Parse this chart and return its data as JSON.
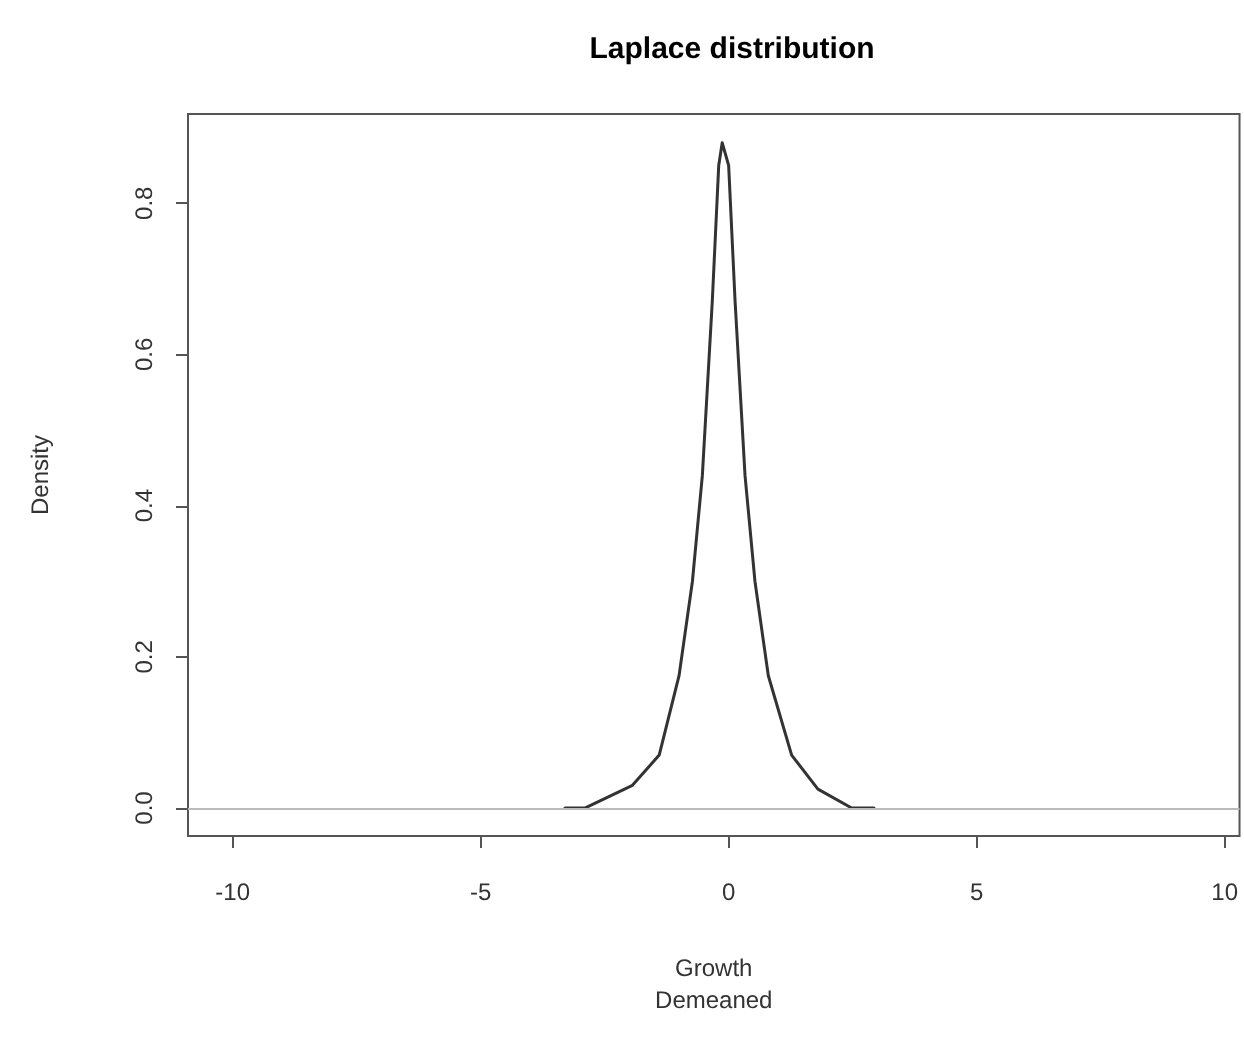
{
  "chart_data": {
    "type": "line",
    "title": "Laplace distribution",
    "xlabel": "Growth\nDemeaned",
    "ylabel": "Density",
    "series": [
      {
        "color": "#333333",
        "x": [
          -3.3,
          -2.9,
          -1.94,
          -1.4,
          -1.0,
          -0.73,
          -0.53,
          -0.33,
          -0.2,
          -0.13,
          0,
          0.13,
          0.33,
          0.53,
          0.8,
          1.27,
          1.8,
          2.48,
          2.93
        ],
        "values": [
          0.0,
          0.0,
          0.03,
          0.07,
          0.175,
          0.3,
          0.44,
          0.67,
          0.85,
          0.88,
          0.85,
          0.67,
          0.44,
          0.3,
          0.175,
          0.07,
          0.025,
          0.0,
          0.0
        ]
      }
    ],
    "xlim": [
      -10.9,
      10.3
    ],
    "xticks": [
      -10,
      -5,
      0,
      5,
      10
    ],
    "ylim": [
      -0.037,
      0.918
    ],
    "yticks": [
      {
        "value": 0,
        "label": "0.0"
      },
      {
        "value": 0.2,
        "label": "0.2"
      },
      {
        "value": 0.4,
        "label": "0.4"
      },
      {
        "value": 0.6,
        "label": "0.6"
      },
      {
        "value": 0.8,
        "label": "0.8"
      }
    ],
    "ref_lines": [
      {
        "axis": "y",
        "value": 0,
        "color": "#bbbbbb"
      }
    ],
    "grid": false,
    "marker": "none",
    "line_style": "solid"
  }
}
